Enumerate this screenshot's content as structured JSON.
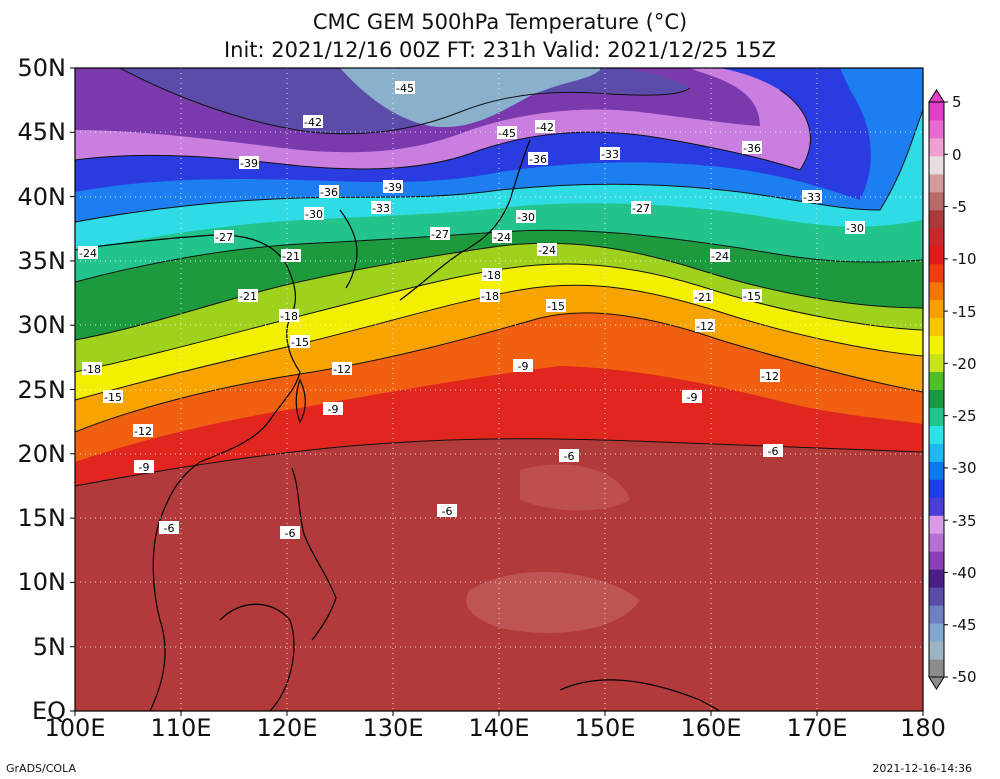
{
  "header": {
    "title": "CMC GEM 500hPa Temperature (°C)",
    "subtitle": "Init: 2021/12/16 00Z  FT: 231h  Valid: 2021/12/25 15Z"
  },
  "axes": {
    "lat_labels": [
      "50N",
      "45N",
      "40N",
      "35N",
      "30N",
      "25N",
      "20N",
      "15N",
      "10N",
      "5N",
      "EQ"
    ],
    "lon_labels": [
      "100E",
      "110E",
      "120E",
      "130E",
      "140E",
      "150E",
      "160E",
      "170E",
      "180"
    ]
  },
  "colorbar": {
    "labels": [
      "5",
      "0",
      "-5",
      "-10",
      "-15",
      "-20",
      "-25",
      "-30",
      "-35",
      "-40",
      "-45",
      "-50"
    ],
    "range": [
      -50,
      5
    ],
    "colors": [
      "#8c8c8c",
      "#9fb4c3",
      "#7ea8cf",
      "#6e7fc4",
      "#5a4ca8",
      "#4a1e86",
      "#8a3fb8",
      "#b66fd2",
      "#da9ae6",
      "#4b3ed8",
      "#1e3ce8",
      "#0a78f0",
      "#1fb8f2",
      "#2fe0e6",
      "#20c58a",
      "#199a3e",
      "#4fbf28",
      "#c8e21e",
      "#f2f200",
      "#f7c400",
      "#f7a000",
      "#f47500",
      "#ee3d10",
      "#e01a1a",
      "#c8282a",
      "#ad3a3a",
      "#b86a6a",
      "#d39a9a",
      "#e8dede",
      "#ef9fd0",
      "#e86ad0",
      "#e33fc8"
    ]
  },
  "contours": {
    "interval": 3,
    "labels": [
      "-45",
      "-42",
      "-45",
      "-42",
      "-39",
      "-36",
      "-33",
      "-36",
      "-39",
      "-36",
      "-33",
      "-30",
      "-33",
      "-30",
      "-27",
      "-27",
      "-24",
      "-24",
      "-30",
      "-27",
      "-24",
      "-21",
      "-24",
      "-18",
      "-21",
      "-18",
      "-21",
      "-15",
      "-18",
      "-15",
      "-12",
      "-12",
      "-15",
      "-18",
      "-15",
      "-12",
      "-9",
      "-9",
      "-12",
      "-9",
      "-9",
      "-6",
      "-6",
      "-6",
      "-6",
      "-6"
    ]
  },
  "footer": {
    "left": "GrADS/COLA",
    "right": "2021-12-16-14:36"
  }
}
